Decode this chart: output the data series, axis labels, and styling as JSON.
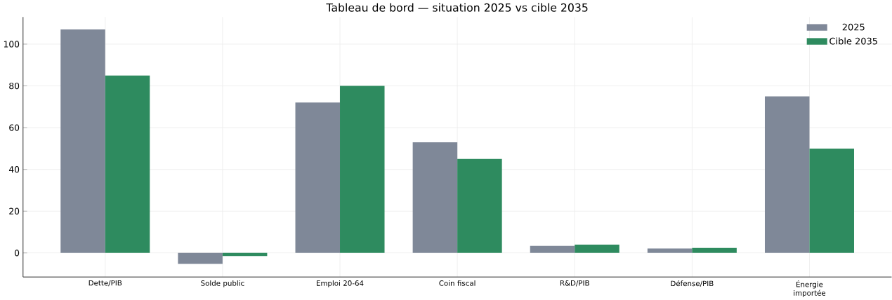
{
  "chart_data": {
    "type": "bar",
    "title": "Tableau de bord — situation 2025 vs cible 2035",
    "categories": [
      "Dette/PIB",
      "Solde public",
      "Emploi 20-64",
      "Coin fiscal",
      "R&D/PIB",
      "Défense/PIB",
      "Énergie importée"
    ],
    "series": [
      {
        "name": "2025",
        "color": "#7f8898",
        "values": [
          107,
          -5.3,
          72,
          53,
          3.4,
          2.1,
          75
        ]
      },
      {
        "name": "Cible 2035",
        "color": "#2e8b5f",
        "values": [
          85,
          -1.5,
          80,
          45,
          4.0,
          2.4,
          50
        ]
      }
    ],
    "ylim": [
      -11.5,
      113
    ],
    "yticks": [
      0,
      20,
      40,
      60,
      80,
      100
    ],
    "grid": true,
    "legend": "top right"
  }
}
